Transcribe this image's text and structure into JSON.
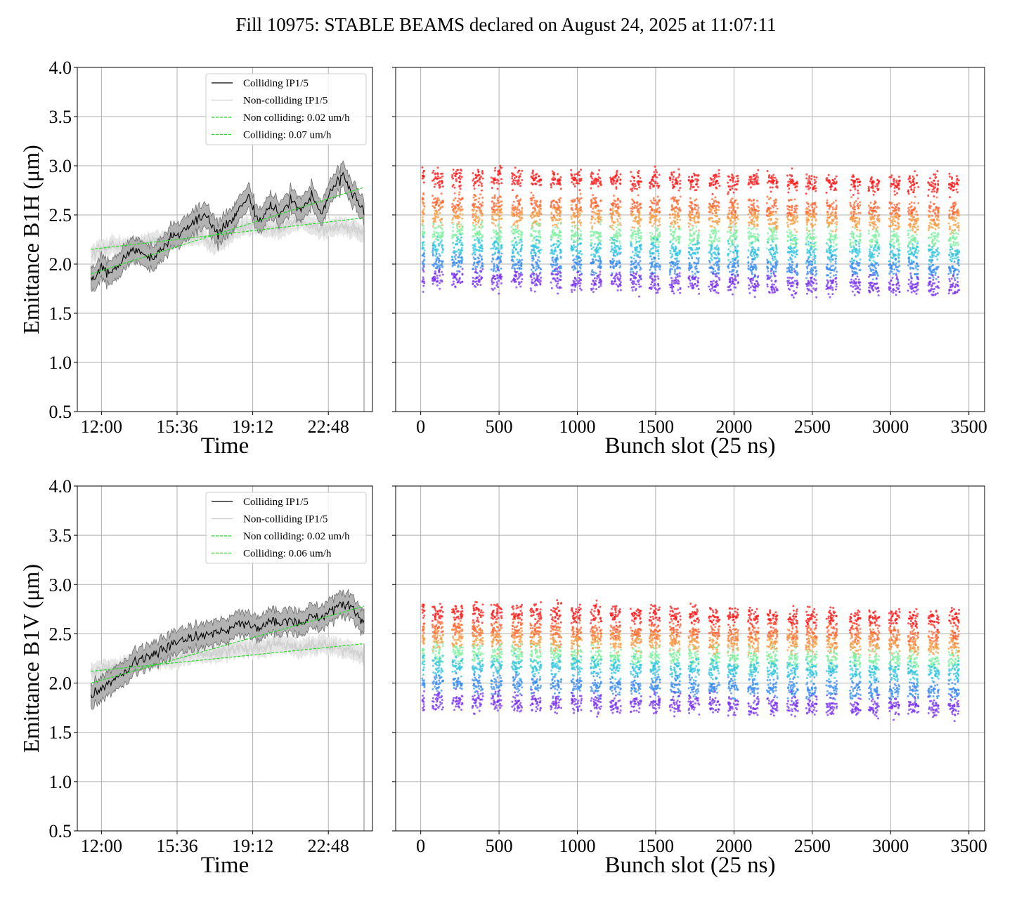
{
  "title": "Fill 10975: STABLE BEAMS declared on August 24, 2025 at 11:07:11",
  "chart_data": [
    {
      "type": "line",
      "ylabel": "Emittance B1H (μm)",
      "xlabel": "Time",
      "ylim": [
        0.5,
        4.0
      ],
      "yticks": [
        "0.5",
        "1.0",
        "1.5",
        "2.0",
        "2.5",
        "3.0",
        "3.5",
        "4.0"
      ],
      "xticks": [
        "12:00",
        "15:36",
        "19:12",
        "22:48"
      ],
      "xlim_hours": [
        10.85,
        24.9
      ],
      "grid": true,
      "legend_position": "top-right",
      "legend": [
        "Colliding IP1/5",
        "Non-colliding IP1/5",
        "Non colliding: 0.02 um/h",
        "Colliding: 0.07 um/h"
      ],
      "series": [
        {
          "name": "Colliding IP1/5",
          "color": "#000000",
          "x_hours": [
            11.5,
            12.0,
            12.5,
            13.0,
            13.5,
            14.0,
            14.5,
            15.0,
            15.5,
            16.0,
            16.5,
            17.0,
            17.5,
            18.0,
            18.5,
            19.0,
            19.5,
            20.0,
            20.5,
            21.0,
            21.5,
            22.0,
            22.5,
            23.0,
            23.5,
            24.0,
            24.5
          ],
          "y": [
            1.85,
            1.95,
            1.9,
            2.05,
            2.15,
            2.1,
            2.05,
            2.2,
            2.3,
            2.35,
            2.45,
            2.5,
            2.3,
            2.4,
            2.55,
            2.7,
            2.4,
            2.6,
            2.5,
            2.65,
            2.55,
            2.7,
            2.5,
            2.8,
            2.9,
            2.7,
            2.55
          ]
        },
        {
          "name": "Non-colliding IP1/5",
          "color": "#c8c8c8",
          "x_hours": [
            11.5,
            12.5,
            13.5,
            14.5,
            15.5,
            16.5,
            17.5,
            18.5,
            19.5,
            20.5,
            21.5,
            22.5,
            23.5,
            24.5
          ],
          "y": [
            2.1,
            2.2,
            2.15,
            2.25,
            2.25,
            2.3,
            2.2,
            2.35,
            2.4,
            2.35,
            2.45,
            2.35,
            2.4,
            2.3
          ]
        },
        {
          "name": "Non colliding: 0.02 um/h",
          "color": "#22dd22",
          "x_hours": [
            11.5,
            24.5
          ],
          "y": [
            2.15,
            2.47
          ]
        },
        {
          "name": "Colliding: 0.07 um/h",
          "color": "#22dd22",
          "x_hours": [
            11.5,
            24.5
          ],
          "y": [
            1.9,
            2.78
          ]
        }
      ]
    },
    {
      "type": "scatter",
      "ylabel": "",
      "xlabel": "Bunch slot (25 ns)",
      "xlim": [
        -160,
        3600
      ],
      "ylim": [
        0.5,
        4.0
      ],
      "xticks": [
        "0",
        "500",
        "1000",
        "1500",
        "2000",
        "2500",
        "3000",
        "3500"
      ],
      "grid": true,
      "train_starts": [
        10,
        75,
        200,
        330,
        450,
        580,
        700,
        830,
        960,
        1085,
        1210,
        1340,
        1460,
        1590,
        1710,
        1840,
        1960,
        2090,
        2210,
        2340,
        2460,
        2590,
        2740,
        2860,
        2990,
        3110,
        3240,
        3370
      ],
      "color_bands": [
        {
          "color": "#ff1a1a",
          "center": 2.88
        },
        {
          "color": "#ff6633",
          "center": 2.62
        },
        {
          "color": "#f5a048",
          "center": 2.5
        },
        {
          "color": "#7ff0a0",
          "center": 2.32
        },
        {
          "color": "#33c6e0",
          "center": 2.18
        },
        {
          "color": "#3a8cf0",
          "center": 2.02
        },
        {
          "color": "#7a33f0",
          "center": 1.85
        }
      ]
    },
    {
      "type": "line",
      "ylabel": "Emittance B1V (μm)",
      "xlabel": "Time",
      "ylim": [
        0.5,
        4.0
      ],
      "yticks": [
        "0.5",
        "1.0",
        "1.5",
        "2.0",
        "2.5",
        "3.0",
        "3.5",
        "4.0"
      ],
      "xticks": [
        "12:00",
        "15:36",
        "19:12",
        "22:48"
      ],
      "xlim_hours": [
        10.85,
        24.9
      ],
      "grid": true,
      "legend_position": "top-right",
      "legend": [
        "Colliding IP1/5",
        "Non-colliding IP1/5",
        "Non colliding: 0.02 um/h",
        "Colliding: 0.06 um/h"
      ],
      "series": [
        {
          "name": "Colliding IP1/5",
          "color": "#000000",
          "x_hours": [
            11.5,
            12.0,
            12.5,
            13.0,
            13.5,
            14.0,
            14.5,
            15.0,
            15.5,
            16.0,
            16.5,
            17.0,
            17.5,
            18.0,
            18.5,
            19.0,
            19.5,
            20.0,
            20.5,
            21.0,
            21.5,
            22.0,
            22.5,
            23.0,
            23.5,
            24.0,
            24.5
          ],
          "y": [
            1.85,
            1.95,
            2.0,
            2.1,
            2.2,
            2.25,
            2.3,
            2.35,
            2.4,
            2.45,
            2.45,
            2.5,
            2.5,
            2.55,
            2.6,
            2.6,
            2.55,
            2.65,
            2.6,
            2.65,
            2.6,
            2.7,
            2.65,
            2.75,
            2.8,
            2.75,
            2.6
          ]
        },
        {
          "name": "Non-colliding IP1/5",
          "color": "#c8c8c8",
          "x_hours": [
            11.5,
            12.5,
            13.5,
            14.5,
            15.5,
            16.5,
            17.5,
            18.5,
            19.5,
            20.5,
            21.5,
            22.5,
            23.5,
            24.5
          ],
          "y": [
            2.1,
            2.15,
            2.2,
            2.25,
            2.25,
            2.3,
            2.3,
            2.35,
            2.35,
            2.4,
            2.35,
            2.4,
            2.35,
            2.3
          ]
        },
        {
          "name": "Non colliding: 0.02 um/h",
          "color": "#22dd22",
          "x_hours": [
            11.5,
            24.5
          ],
          "y": [
            2.12,
            2.4
          ]
        },
        {
          "name": "Colliding: 0.06 um/h",
          "color": "#22dd22",
          "x_hours": [
            11.5,
            24.5
          ],
          "y": [
            2.0,
            2.78
          ]
        }
      ]
    },
    {
      "type": "scatter",
      "ylabel": "",
      "xlabel": "Bunch slot (25 ns)",
      "xlim": [
        -160,
        3600
      ],
      "ylim": [
        0.5,
        4.0
      ],
      "xticks": [
        "0",
        "500",
        "1000",
        "1500",
        "2000",
        "2500",
        "3000",
        "3500"
      ],
      "grid": true,
      "train_starts": [
        10,
        75,
        200,
        330,
        450,
        580,
        700,
        830,
        960,
        1085,
        1210,
        1340,
        1460,
        1590,
        1710,
        1840,
        1960,
        2090,
        2210,
        2340,
        2460,
        2590,
        2740,
        2860,
        2990,
        3110,
        3240,
        3370
      ],
      "color_bands": [
        {
          "color": "#ff1a1a",
          "center": 2.72
        },
        {
          "color": "#ff6633",
          "center": 2.55
        },
        {
          "color": "#f5a048",
          "center": 2.45
        },
        {
          "color": "#7ff0a0",
          "center": 2.3
        },
        {
          "color": "#33c6e0",
          "center": 2.18
        },
        {
          "color": "#3a8cf0",
          "center": 2.0
        },
        {
          "color": "#7a33f0",
          "center": 1.82
        }
      ]
    }
  ]
}
